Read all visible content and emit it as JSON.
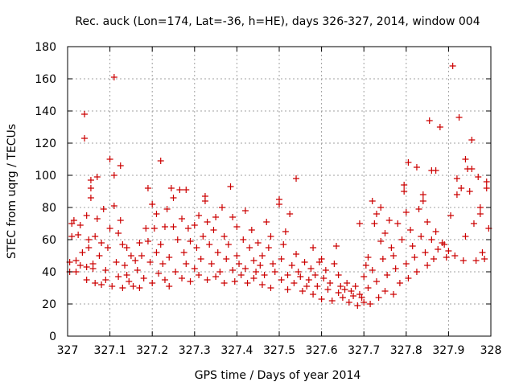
{
  "chart_data": {
    "type": "scatter",
    "title": "Rec. auck (Lon=174, Lat=-36, h=HE), days 326-327, 2014, window 004",
    "xlabel": "GPS time / Days of year 2014",
    "ylabel": "STEC from uqrg / TECUs",
    "xlim": [
      327,
      328
    ],
    "ylim": [
      0,
      180
    ],
    "xticks": [
      327,
      327.1,
      327.2,
      327.3,
      327.4,
      327.5,
      327.6,
      327.7,
      327.8,
      327.9,
      328
    ],
    "xtick_labels": [
      "327",
      "327.1",
      "327.2",
      "327.3",
      "327.4",
      "327.5",
      "327.6",
      "327.7",
      "327.8",
      "327.9",
      "328"
    ],
    "yticks": [
      0,
      20,
      40,
      60,
      80,
      100,
      120,
      140,
      160,
      180
    ],
    "ytick_labels": [
      "0",
      "20",
      "40",
      "60",
      "80",
      "100",
      "120",
      "140",
      "160",
      "180"
    ],
    "grid": true,
    "marker": "+",
    "marker_color": "#cc0000",
    "series": [
      {
        "points": [
          [
            327.005,
            40
          ],
          [
            327.005,
            46
          ],
          [
            327.01,
            62
          ],
          [
            327.01,
            70
          ],
          [
            327.015,
            72
          ],
          [
            327.02,
            40
          ],
          [
            327.02,
            47
          ],
          [
            327.025,
            63
          ],
          [
            327.03,
            69
          ],
          [
            327.03,
            44
          ],
          [
            327.035,
            52
          ],
          [
            327.04,
            138
          ],
          [
            327.04,
            123
          ],
          [
            327.045,
            75
          ],
          [
            327.045,
            43
          ],
          [
            327.045,
            35
          ],
          [
            327.05,
            55
          ],
          [
            327.05,
            60
          ],
          [
            327.055,
            86
          ],
          [
            327.055,
            92
          ],
          [
            327.055,
            97
          ],
          [
            327.06,
            45
          ],
          [
            327.06,
            42
          ],
          [
            327.065,
            62
          ],
          [
            327.065,
            33
          ],
          [
            327.07,
            99
          ],
          [
            327.07,
            73
          ],
          [
            327.075,
            50
          ],
          [
            327.08,
            58
          ],
          [
            327.08,
            32
          ],
          [
            327.085,
            79
          ],
          [
            327.09,
            41
          ],
          [
            327.09,
            35
          ],
          [
            327.095,
            55
          ],
          [
            327.1,
            110
          ],
          [
            327.1,
            67
          ],
          [
            327.105,
            31
          ],
          [
            327.11,
            161
          ],
          [
            327.11,
            100
          ],
          [
            327.11,
            81
          ],
          [
            327.115,
            46
          ],
          [
            327.12,
            64
          ],
          [
            327.12,
            37
          ],
          [
            327.125,
            106
          ],
          [
            327.125,
            72
          ],
          [
            327.13,
            57
          ],
          [
            327.13,
            30
          ],
          [
            327.135,
            44
          ],
          [
            327.14,
            55
          ],
          [
            327.14,
            38
          ],
          [
            327.145,
            34
          ],
          [
            327.15,
            50
          ],
          [
            327.155,
            31
          ],
          [
            327.16,
            47
          ],
          [
            327.165,
            41
          ],
          [
            327.17,
            58
          ],
          [
            327.17,
            30
          ],
          [
            327.175,
            50
          ],
          [
            327.18,
            36
          ],
          [
            327.185,
            67
          ],
          [
            327.19,
            92
          ],
          [
            327.19,
            59
          ],
          [
            327.195,
            46
          ],
          [
            327.2,
            82
          ],
          [
            327.2,
            33
          ],
          [
            327.205,
            67
          ],
          [
            327.21,
            76
          ],
          [
            327.21,
            52
          ],
          [
            327.215,
            39
          ],
          [
            327.22,
            109
          ],
          [
            327.22,
            57
          ],
          [
            327.225,
            45
          ],
          [
            327.23,
            68
          ],
          [
            327.23,
            35
          ],
          [
            327.235,
            79
          ],
          [
            327.24,
            49
          ],
          [
            327.24,
            31
          ],
          [
            327.245,
            92
          ],
          [
            327.25,
            86
          ],
          [
            327.25,
            68
          ],
          [
            327.255,
            40
          ],
          [
            327.26,
            60
          ],
          [
            327.265,
            91
          ],
          [
            327.27,
            73
          ],
          [
            327.27,
            36
          ],
          [
            327.275,
            52
          ],
          [
            327.28,
            91
          ],
          [
            327.28,
            45
          ],
          [
            327.285,
            67
          ],
          [
            327.29,
            59
          ],
          [
            327.29,
            34
          ],
          [
            327.3,
            69
          ],
          [
            327.3,
            42
          ],
          [
            327.305,
            55
          ],
          [
            327.31,
            75
          ],
          [
            327.31,
            38
          ],
          [
            327.315,
            48
          ],
          [
            327.32,
            62
          ],
          [
            327.325,
            87
          ],
          [
            327.325,
            84
          ],
          [
            327.33,
            71
          ],
          [
            327.33,
            35
          ],
          [
            327.335,
            57
          ],
          [
            327.34,
            45
          ],
          [
            327.345,
            66
          ],
          [
            327.35,
            74
          ],
          [
            327.35,
            37
          ],
          [
            327.355,
            52
          ],
          [
            327.36,
            40
          ],
          [
            327.365,
            80
          ],
          [
            327.37,
            62
          ],
          [
            327.37,
            33
          ],
          [
            327.375,
            48
          ],
          [
            327.38,
            57
          ],
          [
            327.385,
            93
          ],
          [
            327.39,
            74
          ],
          [
            327.39,
            41
          ],
          [
            327.395,
            34
          ],
          [
            327.4,
            68
          ],
          [
            327.4,
            50
          ],
          [
            327.405,
            45
          ],
          [
            327.41,
            38
          ],
          [
            327.415,
            60
          ],
          [
            327.42,
            78
          ],
          [
            327.42,
            42
          ],
          [
            327.425,
            33
          ],
          [
            327.43,
            55
          ],
          [
            327.435,
            66
          ],
          [
            327.44,
            47
          ],
          [
            327.44,
            36
          ],
          [
            327.445,
            40
          ],
          [
            327.45,
            58
          ],
          [
            327.455,
            44
          ],
          [
            327.46,
            50
          ],
          [
            327.46,
            32
          ],
          [
            327.465,
            38
          ],
          [
            327.47,
            71
          ],
          [
            327.475,
            55
          ],
          [
            327.48,
            62
          ],
          [
            327.48,
            30
          ],
          [
            327.485,
            45
          ],
          [
            327.49,
            40
          ],
          [
            327.5,
            85
          ],
          [
            327.5,
            82
          ],
          [
            327.505,
            48
          ],
          [
            327.505,
            35
          ],
          [
            327.51,
            57
          ],
          [
            327.515,
            65
          ],
          [
            327.52,
            38
          ],
          [
            327.52,
            29
          ],
          [
            327.525,
            76
          ],
          [
            327.53,
            44
          ],
          [
            327.535,
            33
          ],
          [
            327.54,
            98
          ],
          [
            327.54,
            51
          ],
          [
            327.545,
            40
          ],
          [
            327.55,
            37
          ],
          [
            327.555,
            28
          ],
          [
            327.56,
            46
          ],
          [
            327.565,
            31
          ],
          [
            327.57,
            35
          ],
          [
            327.575,
            42
          ],
          [
            327.58,
            55
          ],
          [
            327.58,
            26
          ],
          [
            327.585,
            38
          ],
          [
            327.59,
            31
          ],
          [
            327.595,
            46
          ],
          [
            327.6,
            48
          ],
          [
            327.6,
            23
          ],
          [
            327.605,
            36
          ],
          [
            327.61,
            41
          ],
          [
            327.615,
            29
          ],
          [
            327.62,
            33
          ],
          [
            327.625,
            22
          ],
          [
            327.63,
            45
          ],
          [
            327.635,
            56
          ],
          [
            327.64,
            38
          ],
          [
            327.64,
            27
          ],
          [
            327.645,
            31
          ],
          [
            327.65,
            24
          ],
          [
            327.655,
            29
          ],
          [
            327.66,
            33
          ],
          [
            327.665,
            21
          ],
          [
            327.67,
            28
          ],
          [
            327.675,
            25
          ],
          [
            327.68,
            31
          ],
          [
            327.685,
            19
          ],
          [
            327.69,
            70
          ],
          [
            327.69,
            26
          ],
          [
            327.695,
            24
          ],
          [
            327.7,
            37
          ],
          [
            327.7,
            21
          ],
          [
            327.705,
            44
          ],
          [
            327.71,
            49
          ],
          [
            327.71,
            30
          ],
          [
            327.715,
            20
          ],
          [
            327.72,
            84
          ],
          [
            327.72,
            41
          ],
          [
            327.725,
            70
          ],
          [
            327.73,
            76
          ],
          [
            327.73,
            34
          ],
          [
            327.735,
            24
          ],
          [
            327.74,
            80
          ],
          [
            327.74,
            59
          ],
          [
            327.745,
            48
          ],
          [
            327.75,
            64
          ],
          [
            327.75,
            28
          ],
          [
            327.755,
            38
          ],
          [
            327.76,
            72
          ],
          [
            327.765,
            55
          ],
          [
            327.77,
            50
          ],
          [
            327.77,
            26
          ],
          [
            327.775,
            42
          ],
          [
            327.78,
            70
          ],
          [
            327.785,
            33
          ],
          [
            327.79,
            60
          ],
          [
            327.795,
            94
          ],
          [
            327.795,
            90
          ],
          [
            327.8,
            77
          ],
          [
            327.8,
            45
          ],
          [
            327.805,
            108
          ],
          [
            327.805,
            36
          ],
          [
            327.81,
            66
          ],
          [
            327.815,
            56
          ],
          [
            327.82,
            49
          ],
          [
            327.825,
            105
          ],
          [
            327.825,
            40
          ],
          [
            327.83,
            79
          ],
          [
            327.835,
            62
          ],
          [
            327.84,
            88
          ],
          [
            327.84,
            84
          ],
          [
            327.845,
            52
          ],
          [
            327.85,
            71
          ],
          [
            327.85,
            44
          ],
          [
            327.855,
            134
          ],
          [
            327.86,
            103
          ],
          [
            327.86,
            60
          ],
          [
            327.865,
            48
          ],
          [
            327.87,
            103
          ],
          [
            327.87,
            65
          ],
          [
            327.875,
            54
          ],
          [
            327.88,
            130
          ],
          [
            327.885,
            58
          ],
          [
            327.89,
            57
          ],
          [
            327.895,
            49
          ],
          [
            327.9,
            53
          ],
          [
            327.905,
            75
          ],
          [
            327.91,
            168
          ],
          [
            327.915,
            50
          ],
          [
            327.92,
            98
          ],
          [
            327.92,
            88
          ],
          [
            327.925,
            136
          ],
          [
            327.93,
            92
          ],
          [
            327.935,
            47
          ],
          [
            327.94,
            110
          ],
          [
            327.94,
            62
          ],
          [
            327.945,
            104
          ],
          [
            327.95,
            90
          ],
          [
            327.955,
            122
          ],
          [
            327.955,
            104
          ],
          [
            327.96,
            70
          ],
          [
            327.965,
            47
          ],
          [
            327.97,
            99
          ],
          [
            327.975,
            80
          ],
          [
            327.975,
            76
          ],
          [
            327.98,
            52
          ],
          [
            327.985,
            48
          ],
          [
            327.99,
            96
          ],
          [
            327.99,
            92
          ],
          [
            327.995,
            67
          ]
        ]
      }
    ]
  }
}
